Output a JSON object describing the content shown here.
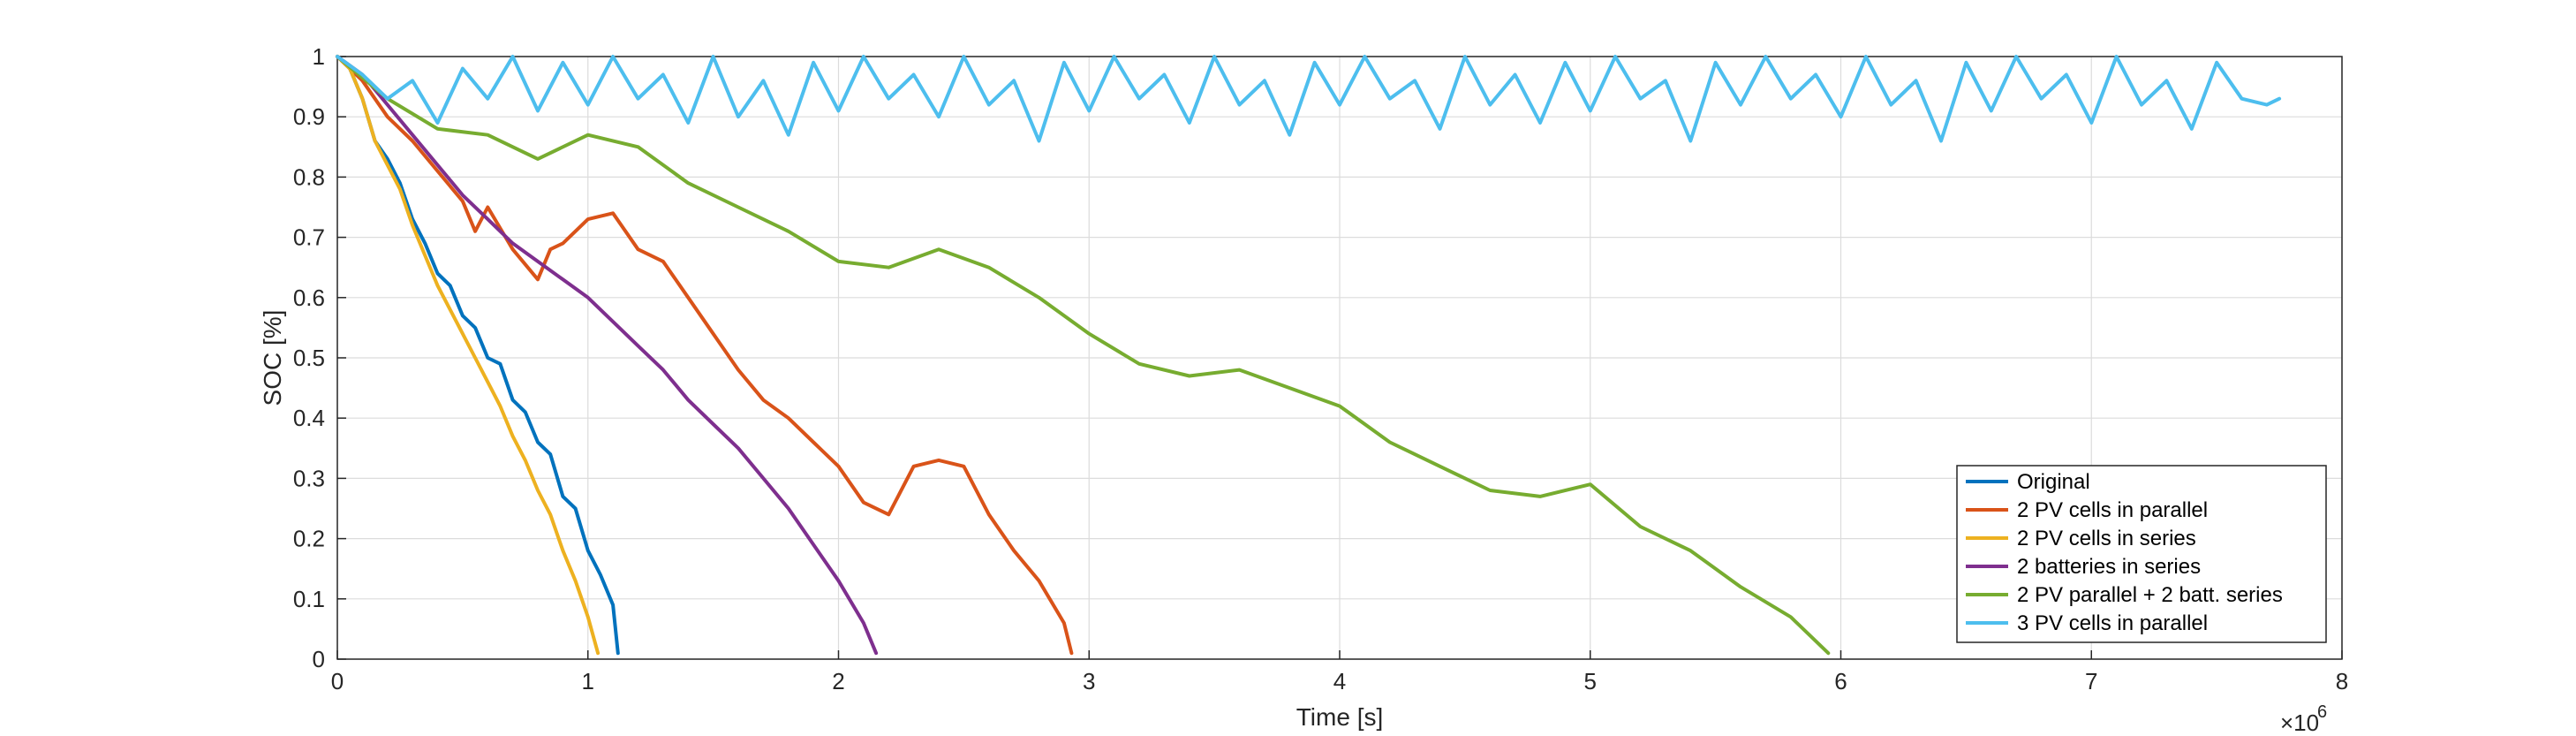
{
  "chart_data": {
    "type": "line",
    "xlabel": "Time [s]",
    "ylabel": "SOC [%]",
    "x_exponent_label": "×10",
    "x_exponent_power": "6",
    "xlim": [
      0,
      8
    ],
    "ylim": [
      0,
      1
    ],
    "x_ticks": [
      0,
      1,
      2,
      3,
      4,
      5,
      6,
      7,
      8
    ],
    "x_tick_labels": [
      "0",
      "1",
      "2",
      "3",
      "4",
      "5",
      "6",
      "7",
      "8"
    ],
    "y_ticks": [
      0,
      0.1,
      0.2,
      0.3,
      0.4,
      0.5,
      0.6,
      0.7,
      0.8,
      0.9,
      1
    ],
    "y_tick_labels": [
      "0",
      "0.1",
      "0.2",
      "0.3",
      "0.4",
      "0.5",
      "0.6",
      "0.7",
      "0.8",
      "0.9",
      "1"
    ],
    "grid": true,
    "legend_position": "bottom-right",
    "series": [
      {
        "name": "Original",
        "color": "#0072BD",
        "x": [
          0,
          0.05,
          0.1,
          0.15,
          0.2,
          0.25,
          0.3,
          0.35,
          0.4,
          0.45,
          0.5,
          0.55,
          0.6,
          0.65,
          0.7,
          0.75,
          0.8,
          0.85,
          0.9,
          0.95,
          1.0,
          1.05,
          1.1,
          1.12
        ],
        "y": [
          1.0,
          0.98,
          0.93,
          0.86,
          0.83,
          0.79,
          0.73,
          0.69,
          0.64,
          0.62,
          0.57,
          0.55,
          0.5,
          0.49,
          0.43,
          0.41,
          0.36,
          0.34,
          0.27,
          0.25,
          0.18,
          0.14,
          0.09,
          0.01
        ]
      },
      {
        "name": "2 PV cells in parallel",
        "color": "#D95319",
        "x": [
          0,
          0.1,
          0.2,
          0.3,
          0.4,
          0.5,
          0.55,
          0.6,
          0.7,
          0.8,
          0.85,
          0.9,
          1.0,
          1.1,
          1.2,
          1.3,
          1.4,
          1.5,
          1.6,
          1.7,
          1.8,
          1.9,
          2.0,
          2.1,
          2.2,
          2.3,
          2.4,
          2.5,
          2.6,
          2.7,
          2.8,
          2.9,
          2.93
        ],
        "y": [
          1.0,
          0.96,
          0.9,
          0.86,
          0.81,
          0.76,
          0.71,
          0.75,
          0.68,
          0.63,
          0.68,
          0.69,
          0.73,
          0.74,
          0.68,
          0.66,
          0.6,
          0.54,
          0.48,
          0.43,
          0.4,
          0.36,
          0.32,
          0.26,
          0.24,
          0.32,
          0.33,
          0.32,
          0.24,
          0.18,
          0.13,
          0.06,
          0.01
        ]
      },
      {
        "name": "2 PV cells in series",
        "color": "#EDB120",
        "x": [
          0,
          0.05,
          0.1,
          0.15,
          0.2,
          0.25,
          0.3,
          0.35,
          0.4,
          0.45,
          0.5,
          0.55,
          0.6,
          0.65,
          0.7,
          0.75,
          0.8,
          0.85,
          0.9,
          0.95,
          1.0,
          1.04
        ],
        "y": [
          1.0,
          0.98,
          0.93,
          0.86,
          0.82,
          0.78,
          0.72,
          0.67,
          0.62,
          0.58,
          0.54,
          0.5,
          0.46,
          0.42,
          0.37,
          0.33,
          0.28,
          0.24,
          0.18,
          0.13,
          0.07,
          0.01
        ]
      },
      {
        "name": "2 batteries in series",
        "color": "#7E2F8E",
        "x": [
          0,
          0.1,
          0.2,
          0.3,
          0.4,
          0.5,
          0.6,
          0.7,
          0.8,
          0.9,
          1.0,
          1.1,
          1.2,
          1.3,
          1.4,
          1.5,
          1.6,
          1.7,
          1.8,
          1.9,
          2.0,
          2.1,
          2.15
        ],
        "y": [
          1.0,
          0.97,
          0.92,
          0.87,
          0.82,
          0.77,
          0.73,
          0.69,
          0.66,
          0.63,
          0.6,
          0.56,
          0.52,
          0.48,
          0.43,
          0.39,
          0.35,
          0.3,
          0.25,
          0.19,
          0.13,
          0.06,
          0.01
        ]
      },
      {
        "name": "2 PV parallel + 2 batt. series",
        "color": "#77AC30",
        "x": [
          0,
          0.2,
          0.4,
          0.6,
          0.8,
          1.0,
          1.2,
          1.4,
          1.6,
          1.8,
          2.0,
          2.2,
          2.4,
          2.6,
          2.8,
          3.0,
          3.2,
          3.4,
          3.6,
          3.8,
          4.0,
          4.2,
          4.4,
          4.6,
          4.8,
          5.0,
          5.2,
          5.4,
          5.6,
          5.8,
          5.95
        ],
        "y": [
          1.0,
          0.93,
          0.88,
          0.87,
          0.83,
          0.87,
          0.85,
          0.79,
          0.75,
          0.71,
          0.66,
          0.65,
          0.68,
          0.65,
          0.6,
          0.54,
          0.49,
          0.47,
          0.48,
          0.45,
          0.42,
          0.36,
          0.32,
          0.28,
          0.27,
          0.29,
          0.22,
          0.18,
          0.12,
          0.07,
          0.01
        ]
      },
      {
        "name": "3 PV cells in parallel",
        "color": "#4DBEEE",
        "x": [
          0,
          0.1,
          0.2,
          0.3,
          0.4,
          0.5,
          0.6,
          0.7,
          0.8,
          0.9,
          1.0,
          1.1,
          1.2,
          1.3,
          1.4,
          1.5,
          1.6,
          1.7,
          1.8,
          1.9,
          2.0,
          2.1,
          2.2,
          2.3,
          2.4,
          2.5,
          2.6,
          2.7,
          2.8,
          2.9,
          3.0,
          3.1,
          3.2,
          3.3,
          3.4,
          3.5,
          3.6,
          3.7,
          3.8,
          3.9,
          4.0,
          4.1,
          4.2,
          4.3,
          4.4,
          4.5,
          4.6,
          4.7,
          4.8,
          4.9,
          5.0,
          5.1,
          5.2,
          5.3,
          5.4,
          5.5,
          5.6,
          5.7,
          5.8,
          5.9,
          6.0,
          6.1,
          6.2,
          6.3,
          6.4,
          6.5,
          6.6,
          6.7,
          6.8,
          6.9,
          7.0,
          7.1,
          7.2,
          7.3,
          7.4,
          7.5,
          7.6,
          7.7,
          7.75
        ],
        "y": [
          1.0,
          0.97,
          0.93,
          0.96,
          0.89,
          0.98,
          0.93,
          1.0,
          0.91,
          0.99,
          0.92,
          1.0,
          0.93,
          0.97,
          0.89,
          1.0,
          0.9,
          0.96,
          0.87,
          0.99,
          0.91,
          1.0,
          0.93,
          0.97,
          0.9,
          1.0,
          0.92,
          0.96,
          0.86,
          0.99,
          0.91,
          1.0,
          0.93,
          0.97,
          0.89,
          1.0,
          0.92,
          0.96,
          0.87,
          0.99,
          0.92,
          1.0,
          0.93,
          0.96,
          0.88,
          1.0,
          0.92,
          0.97,
          0.89,
          0.99,
          0.91,
          1.0,
          0.93,
          0.96,
          0.86,
          0.99,
          0.92,
          1.0,
          0.93,
          0.97,
          0.9,
          1.0,
          0.92,
          0.96,
          0.86,
          0.99,
          0.91,
          1.0,
          0.93,
          0.97,
          0.89,
          1.0,
          0.92,
          0.96,
          0.88,
          0.99,
          0.93,
          0.92,
          0.93
        ]
      }
    ]
  }
}
